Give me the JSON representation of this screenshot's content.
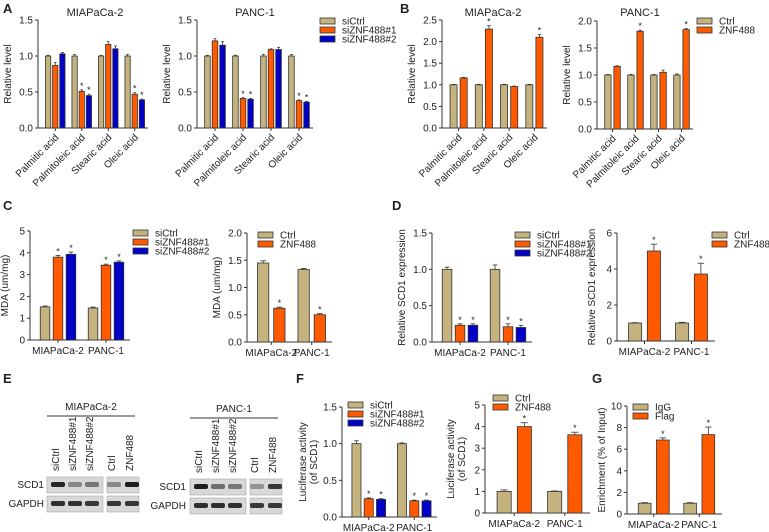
{
  "colors": {
    "siCtrl": "#C4B37E",
    "ctrl": "#C4B37E",
    "orange": "#FF5A00",
    "blue": "#0000C8",
    "axis": "#333333"
  },
  "panel_letters": [
    "A",
    "B",
    "C",
    "D",
    "E",
    "F",
    "G"
  ],
  "sig_label": "*",
  "chart_data": [
    {
      "id": "A1",
      "panel": "A",
      "type": "bar",
      "title": "MIAPaCa-2",
      "ylabel": "Relative level",
      "ylim": [
        0,
        1.5
      ],
      "yticks": [
        "0.0",
        "0.5",
        "1.0",
        "1.5"
      ],
      "rotate_x": true,
      "categories": [
        "Palmitic acid",
        "Palmitoleic acid",
        "Stearic acid",
        "Oleic acid"
      ],
      "series": [
        {
          "name": "siCtrl",
          "values": [
            1.0,
            1.0,
            1.0,
            1.0
          ],
          "errors": [
            0.01,
            0.02,
            0.01,
            0.02
          ],
          "sig": [
            0,
            0,
            0,
            0
          ]
        },
        {
          "name": "siZNF488#1",
          "values": [
            0.87,
            0.51,
            1.16,
            0.47
          ],
          "errors": [
            0.04,
            0.02,
            0.04,
            0.02
          ],
          "sig": [
            0,
            1,
            0,
            1
          ]
        },
        {
          "name": "siZNF488#2",
          "values": [
            1.03,
            0.45,
            1.1,
            0.39
          ],
          "errors": [
            0.02,
            0.02,
            0.04,
            0.01
          ],
          "sig": [
            0,
            1,
            0,
            1
          ]
        }
      ]
    },
    {
      "id": "A2",
      "panel": "A",
      "type": "bar",
      "title": "PANC-1",
      "ylabel": "Relative level",
      "ylim": [
        0,
        1.5
      ],
      "yticks": [
        "0.0",
        "0.5",
        "1.0",
        "1.5"
      ],
      "rotate_x": true,
      "categories": [
        "Palmitic acid",
        "Palmitoleic acid",
        "Stearic acid",
        "Oleic acid"
      ],
      "series": [
        {
          "name": "siCtrl",
          "values": [
            1.0,
            1.0,
            1.0,
            1.0
          ],
          "errors": [
            0.01,
            0.01,
            0.02,
            0.02
          ],
          "sig": [
            0,
            0,
            0,
            0
          ]
        },
        {
          "name": "siZNF488#1",
          "values": [
            1.21,
            0.41,
            1.09,
            0.38
          ],
          "errors": [
            0.03,
            0.01,
            0.01,
            0.01
          ],
          "sig": [
            0,
            1,
            0,
            1
          ]
        },
        {
          "name": "siZNF488#2",
          "values": [
            1.15,
            0.4,
            1.09,
            0.36
          ],
          "errors": [
            0.05,
            0.01,
            0.03,
            0.01
          ],
          "sig": [
            0,
            1,
            0,
            1
          ]
        }
      ],
      "legend": [
        "siCtrl",
        "siZNF488#1",
        "siZNF488#2"
      ]
    },
    {
      "id": "B1",
      "panel": "B",
      "type": "bar",
      "title": "MIAPaCa-2",
      "ylabel": "Relative level",
      "ylim": [
        0,
        2.5
      ],
      "yticks": [
        "0.0",
        "0.5",
        "1.0",
        "1.5",
        "2.0",
        "2.5"
      ],
      "rotate_x": true,
      "categories": [
        "Palmitic acid",
        "Palmitoleic acid",
        "Stearic acid",
        "Oleic acid"
      ],
      "series": [
        {
          "name": "Ctrl",
          "values": [
            1.0,
            1.0,
            1.0,
            1.0
          ],
          "errors": [
            0.01,
            0.01,
            0.01,
            0.01
          ],
          "sig": [
            0,
            0,
            0,
            0
          ]
        },
        {
          "name": "ZNF488",
          "values": [
            1.16,
            2.29,
            0.96,
            2.1
          ],
          "errors": [
            0.01,
            0.08,
            0.01,
            0.06
          ],
          "sig": [
            0,
            1,
            0,
            1
          ]
        }
      ]
    },
    {
      "id": "B2",
      "panel": "B",
      "type": "bar",
      "title": "PANC-1",
      "ylabel": "Relative level",
      "ylim": [
        0,
        2.0
      ],
      "yticks": [
        "0.0",
        "0.5",
        "1.0",
        "1.5",
        "2.0"
      ],
      "rotate_x": true,
      "categories": [
        "Palmitic acid",
        "Palmitoleic acid",
        "Stearic acid",
        "Oleic acid"
      ],
      "series": [
        {
          "name": "Ctrl",
          "values": [
            1.0,
            1.0,
            1.0,
            1.0
          ],
          "errors": [
            0.01,
            0.01,
            0.01,
            0.02
          ],
          "sig": [
            0,
            0,
            0,
            0
          ]
        },
        {
          "name": "ZNF488",
          "values": [
            1.16,
            1.81,
            1.05,
            1.84
          ],
          "errors": [
            0.01,
            0.02,
            0.04,
            0.02
          ],
          "sig": [
            0,
            1,
            0,
            1
          ]
        }
      ],
      "legend": [
        "Ctrl",
        "ZNF488"
      ]
    },
    {
      "id": "C1",
      "panel": "C",
      "type": "bar",
      "title": "",
      "ylabel": "MDA (um/mg)",
      "ylim": [
        0,
        5
      ],
      "yticks": [
        "0",
        "1",
        "2",
        "3",
        "4",
        "5"
      ],
      "rotate_x": false,
      "categories": [
        "MIAPaCa-2",
        "PANC-1"
      ],
      "series": [
        {
          "name": "siCtrl",
          "values": [
            1.52,
            1.47
          ],
          "errors": [
            0.04,
            0.04
          ],
          "sig": [
            0,
            0
          ]
        },
        {
          "name": "siZNF488#1",
          "values": [
            3.8,
            3.43
          ],
          "errors": [
            0.08,
            0.05
          ],
          "sig": [
            1,
            1
          ]
        },
        {
          "name": "siZNF488#2",
          "values": [
            3.93,
            3.57
          ],
          "errors": [
            0.1,
            0.06
          ],
          "sig": [
            1,
            1
          ]
        }
      ],
      "legend": [
        "siCtrl",
        "siZNF488#1",
        "siZNF488#2"
      ]
    },
    {
      "id": "C2",
      "panel": "C",
      "type": "bar",
      "title": "",
      "ylabel": "MDA (um/mg)",
      "ylim": [
        0,
        2.0
      ],
      "yticks": [
        "0.0",
        "0.5",
        "1.0",
        "1.5",
        "2.0"
      ],
      "rotate_x": false,
      "categories": [
        "MIAPaCa-2",
        "PANC-1"
      ],
      "series": [
        {
          "name": "Ctrl",
          "values": [
            1.45,
            1.33
          ],
          "errors": [
            0.04,
            0.02
          ],
          "sig": [
            0,
            0
          ]
        },
        {
          "name": "ZNF488",
          "values": [
            0.62,
            0.5
          ],
          "errors": [
            0.02,
            0.02
          ],
          "sig": [
            1,
            1
          ]
        }
      ],
      "legend": [
        "Ctrl",
        "ZNF488"
      ]
    },
    {
      "id": "D1",
      "panel": "D",
      "type": "bar",
      "title": "",
      "ylabel": "Relative SCD1 expression",
      "ylim": [
        0,
        1.5
      ],
      "yticks": [
        "0.0",
        "0.5",
        "1.0",
        "1.5"
      ],
      "rotate_x": false,
      "categories": [
        "MIAPaCa-2",
        "PANC-1"
      ],
      "series": [
        {
          "name": "siCtrl",
          "values": [
            1.0,
            1.0
          ],
          "errors": [
            0.03,
            0.06
          ],
          "sig": [
            0,
            0
          ]
        },
        {
          "name": "siZNF488#1",
          "values": [
            0.23,
            0.21
          ],
          "errors": [
            0.02,
            0.04
          ],
          "sig": [
            1,
            1
          ]
        },
        {
          "name": "siZNF488#2",
          "values": [
            0.23,
            0.2
          ],
          "errors": [
            0.02,
            0.03
          ],
          "sig": [
            1,
            1
          ]
        }
      ],
      "legend": [
        "siCtrl",
        "siZNF488#1",
        "siZNF488#2"
      ]
    },
    {
      "id": "D2",
      "panel": "D",
      "type": "bar",
      "title": "",
      "ylabel": "Relative SCD1 expression",
      "ylim": [
        0,
        6
      ],
      "yticks": [
        "0",
        "2",
        "4",
        "6"
      ],
      "rotate_x": false,
      "categories": [
        "MIAPaCa-2",
        "PANC-1"
      ],
      "series": [
        {
          "name": "Ctrl",
          "values": [
            1.0,
            1.0
          ],
          "errors": [
            0.02,
            0.04
          ],
          "sig": [
            0,
            0
          ]
        },
        {
          "name": "ZNF488",
          "values": [
            5.0,
            3.72
          ],
          "errors": [
            0.38,
            0.6
          ],
          "sig": [
            1,
            1
          ]
        }
      ],
      "legend": [
        "Ctrl",
        "ZNF488"
      ]
    },
    {
      "id": "F1",
      "panel": "F",
      "type": "bar",
      "title": "",
      "ylabel": "Luciferase activity (of SCD1)",
      "ylim": [
        0,
        1.5
      ],
      "yticks": [
        "0.0",
        "0.5",
        "1.0",
        "1.5"
      ],
      "rotate_x": false,
      "categories": [
        "MIAPaCa-2",
        "PANC-1"
      ],
      "series": [
        {
          "name": "siCtrl",
          "values": [
            1.0,
            1.0
          ],
          "errors": [
            0.04,
            0.01
          ],
          "sig": [
            0,
            0
          ]
        },
        {
          "name": "siZNF488#1",
          "values": [
            0.25,
            0.22
          ],
          "errors": [
            0.01,
            0.01
          ],
          "sig": [
            1,
            1
          ]
        },
        {
          "name": "siZNF488#2",
          "values": [
            0.24,
            0.22
          ],
          "errors": [
            0.01,
            0.01
          ],
          "sig": [
            1,
            1
          ]
        }
      ],
      "legend": [
        "siCtrl",
        "siZNF488#1",
        "siZNF488#2"
      ]
    },
    {
      "id": "F2",
      "panel": "F",
      "type": "bar",
      "title": "",
      "ylabel": "Luciferase activity (of SCD1)",
      "ylim": [
        0,
        5
      ],
      "yticks": [
        "0",
        "1",
        "2",
        "3",
        "4",
        "5"
      ],
      "rotate_x": false,
      "categories": [
        "MIAPaCa-2",
        "PANC-1"
      ],
      "series": [
        {
          "name": "Ctrl",
          "values": [
            1.0,
            1.0
          ],
          "errors": [
            0.07,
            0.02
          ],
          "sig": [
            0,
            0
          ]
        },
        {
          "name": "ZNF488",
          "values": [
            4.0,
            3.62
          ],
          "errors": [
            0.18,
            0.12
          ],
          "sig": [
            1,
            1
          ]
        }
      ],
      "legend": [
        "Ctrl",
        "ZNF488"
      ]
    },
    {
      "id": "G1",
      "panel": "G",
      "type": "bar",
      "title": "",
      "ylabel": "Enrichment (% of Input)",
      "ylim": [
        0,
        10
      ],
      "yticks": [
        "0",
        "2",
        "4",
        "6",
        "8",
        "10"
      ],
      "rotate_x": false,
      "categories": [
        "MIAPaCa-2",
        "PANC-1"
      ],
      "series": [
        {
          "name": "IgG",
          "values": [
            1.0,
            1.0
          ],
          "errors": [
            0.05,
            0.05
          ],
          "sig": [
            0,
            0
          ]
        },
        {
          "name": "Flag",
          "values": [
            6.85,
            7.35
          ],
          "errors": [
            0.2,
            0.7
          ],
          "sig": [
            1,
            1
          ]
        }
      ],
      "legend": [
        "IgG",
        "Flag"
      ]
    }
  ],
  "western_blot": {
    "panel": "E",
    "blots": [
      {
        "cell_line": "MIAPaCa-2",
        "lanes": [
          "siCtrl",
          "siZNF488#1",
          "siZNF488#2",
          "Ctrl",
          "ZNF488"
        ],
        "rows": [
          "SCD1",
          "GAPDH"
        ],
        "scd1_intensity": [
          0.9,
          0.35,
          0.45,
          0.35,
          0.95
        ],
        "gapdh_intensity": [
          0.85,
          0.85,
          0.8,
          0.8,
          0.8
        ]
      },
      {
        "cell_line": "PANC-1",
        "lanes": [
          "siCtrl",
          "siZNF488#1",
          "siZNF488#2",
          "Ctrl",
          "ZNF488"
        ],
        "rows": [
          "SCD1",
          "GAPDH"
        ],
        "scd1_intensity": [
          0.95,
          0.5,
          0.45,
          0.3,
          0.8
        ],
        "gapdh_intensity": [
          0.85,
          0.85,
          0.85,
          0.8,
          0.8
        ]
      }
    ]
  }
}
